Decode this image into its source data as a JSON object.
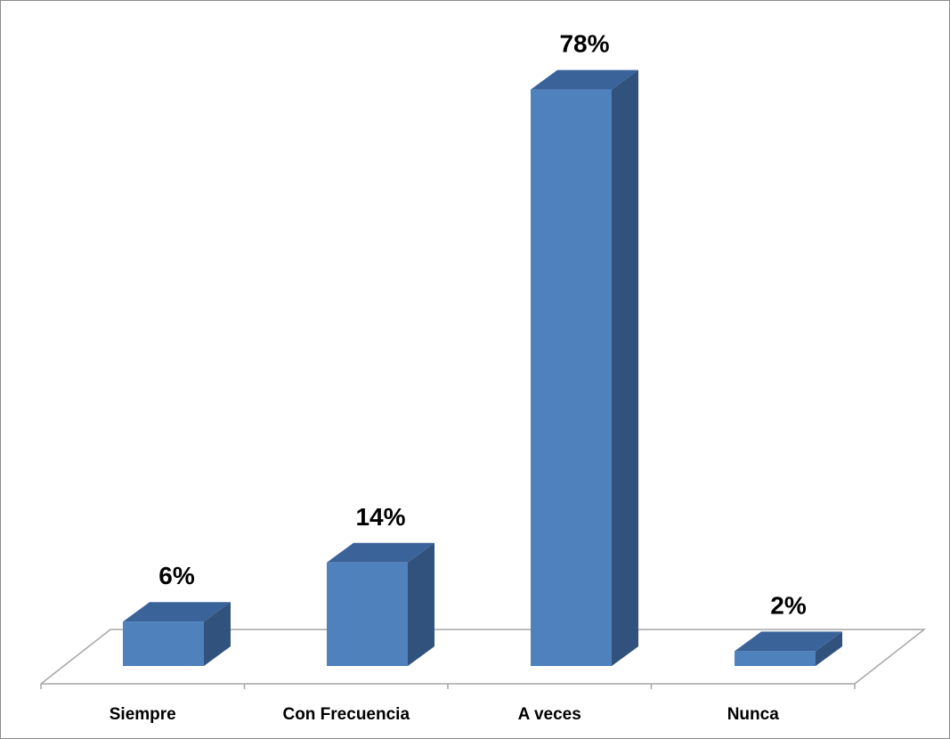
{
  "chart_data": {
    "type": "bar",
    "categories": [
      "Siempre",
      "Con Frecuencia",
      "A veces",
      "Nunca"
    ],
    "values": [
      6,
      14,
      78,
      2
    ],
    "data_labels": [
      "6%",
      "14%",
      "78%",
      "2%"
    ],
    "title": "",
    "xlabel": "",
    "ylabel": "",
    "ylim": [
      0,
      100
    ],
    "grid": false,
    "legend": "none",
    "style": "3d-column",
    "colors": {
      "bar_front": "#4f81bd",
      "bar_top": "#3a639a",
      "bar_side": "#31527d",
      "floor_line": "#a6a6a6",
      "frame": "#8c8c8c"
    }
  }
}
